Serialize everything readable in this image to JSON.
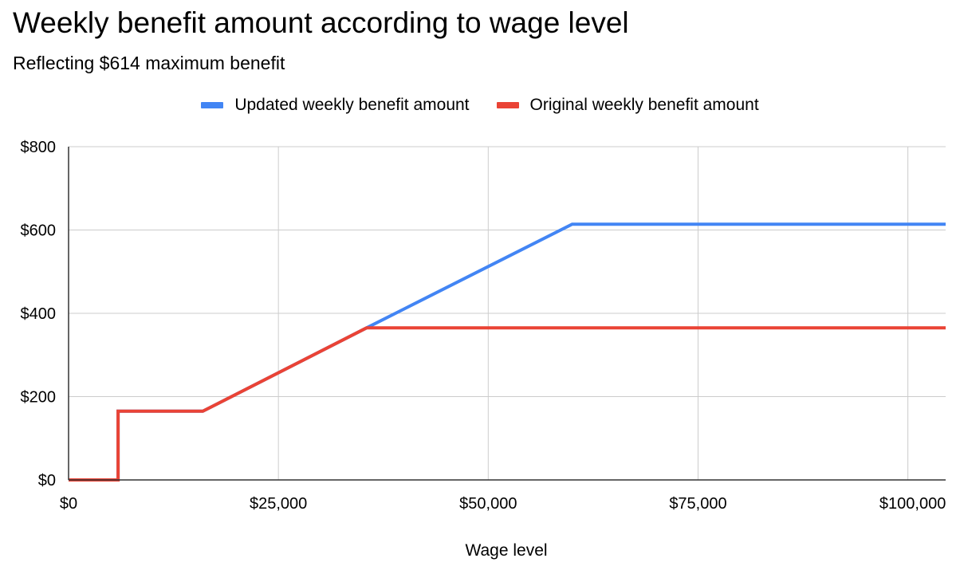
{
  "chart_data": {
    "type": "line",
    "title": "Weekly benefit amount according to wage level",
    "subtitle": "Reflecting $614 maximum benefit",
    "xlabel": "Wage level",
    "ylabel": "",
    "xlim": [
      0,
      104500
    ],
    "ylim": [
      0,
      800
    ],
    "grid": true,
    "legend_position": "top",
    "x_ticks": [
      {
        "value": 0,
        "label": "$0"
      },
      {
        "value": 25000,
        "label": "$25,000"
      },
      {
        "value": 50000,
        "label": "$50,000"
      },
      {
        "value": 75000,
        "label": "$75,000"
      },
      {
        "value": 100000,
        "label": "$100,000"
      }
    ],
    "y_ticks": [
      {
        "value": 0,
        "label": "$0"
      },
      {
        "value": 200,
        "label": "$200"
      },
      {
        "value": 400,
        "label": "$400"
      },
      {
        "value": 600,
        "label": "$600"
      },
      {
        "value": 800,
        "label": "$800"
      }
    ],
    "series": [
      {
        "name": "Updated weekly benefit amount",
        "color": "#4285F4",
        "x": [
          0,
          5900,
          5900,
          16000,
          35500,
          60000,
          104500
        ],
        "y": [
          0,
          0,
          165,
          165,
          365,
          614,
          614
        ]
      },
      {
        "name": "Original weekly benefit amount",
        "color": "#EA4335",
        "x": [
          0,
          5900,
          5900,
          16000,
          35500,
          104500
        ],
        "y": [
          0,
          0,
          165,
          165,
          365,
          365
        ]
      }
    ]
  }
}
